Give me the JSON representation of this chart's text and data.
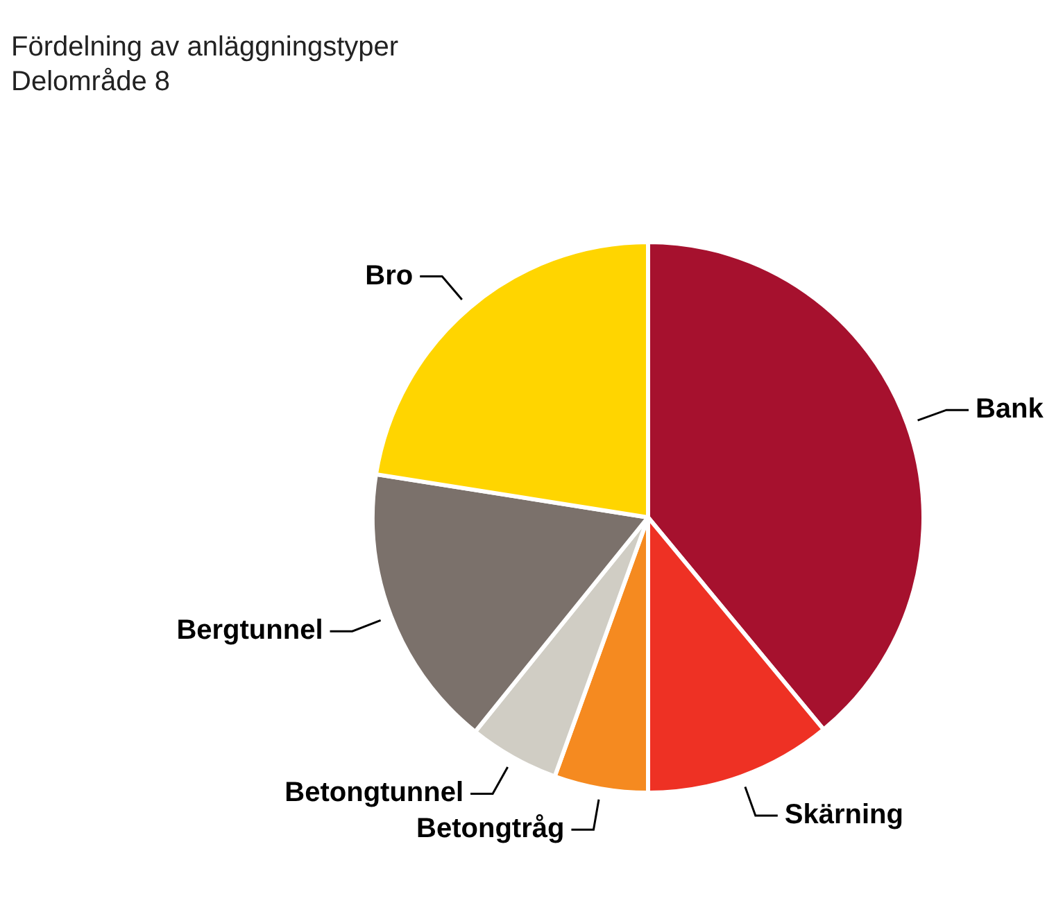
{
  "chart_data": {
    "type": "pie",
    "title": "Fördelning av anläggningstyper",
    "subtitle": "Delområde 8",
    "categories": [
      "Bank",
      "Skärning",
      "Betongtråg",
      "Betongtunnel",
      "Bergtunnel",
      "Bro"
    ],
    "values": [
      39,
      11,
      5.5,
      5.3,
      16.7,
      22.5
    ],
    "colors": [
      "#a6112e",
      "#ee3124",
      "#f58a20",
      "#d0cdc4",
      "#7b716b",
      "#ffd500"
    ],
    "legend": false
  }
}
